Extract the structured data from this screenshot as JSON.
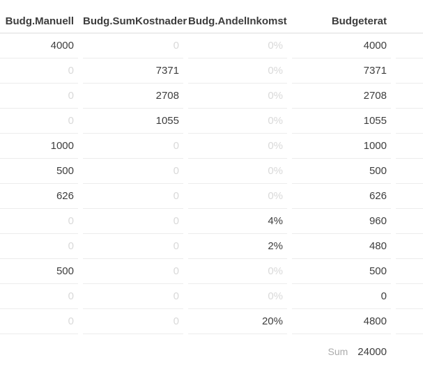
{
  "table": {
    "columns": [
      {
        "label": "Budg.Manuell"
      },
      {
        "label": "Budg.SumKostnader"
      },
      {
        "label": "Budg.AndelInkomst"
      },
      {
        "label": "Budgeterat"
      }
    ],
    "rows": [
      [
        {
          "t": "4000",
          "muted": false
        },
        {
          "t": "0",
          "muted": true
        },
        {
          "t": "0%",
          "muted": true
        },
        {
          "t": "4000",
          "muted": false
        }
      ],
      [
        {
          "t": "0",
          "muted": true
        },
        {
          "t": "7371",
          "muted": false
        },
        {
          "t": "0%",
          "muted": true
        },
        {
          "t": "7371",
          "muted": false
        }
      ],
      [
        {
          "t": "0",
          "muted": true
        },
        {
          "t": "2708",
          "muted": false
        },
        {
          "t": "0%",
          "muted": true
        },
        {
          "t": "2708",
          "muted": false
        }
      ],
      [
        {
          "t": "0",
          "muted": true
        },
        {
          "t": "1055",
          "muted": false
        },
        {
          "t": "0%",
          "muted": true
        },
        {
          "t": "1055",
          "muted": false
        }
      ],
      [
        {
          "t": "1000",
          "muted": false
        },
        {
          "t": "0",
          "muted": true
        },
        {
          "t": "0%",
          "muted": true
        },
        {
          "t": "1000",
          "muted": false
        }
      ],
      [
        {
          "t": "500",
          "muted": false
        },
        {
          "t": "0",
          "muted": true
        },
        {
          "t": "0%",
          "muted": true
        },
        {
          "t": "500",
          "muted": false
        }
      ],
      [
        {
          "t": "626",
          "muted": false
        },
        {
          "t": "0",
          "muted": true
        },
        {
          "t": "0%",
          "muted": true
        },
        {
          "t": "626",
          "muted": false
        }
      ],
      [
        {
          "t": "0",
          "muted": true
        },
        {
          "t": "0",
          "muted": true
        },
        {
          "t": "4%",
          "muted": false
        },
        {
          "t": "960",
          "muted": false
        }
      ],
      [
        {
          "t": "0",
          "muted": true
        },
        {
          "t": "0",
          "muted": true
        },
        {
          "t": "2%",
          "muted": false
        },
        {
          "t": "480",
          "muted": false
        }
      ],
      [
        {
          "t": "500",
          "muted": false
        },
        {
          "t": "0",
          "muted": true
        },
        {
          "t": "0%",
          "muted": true
        },
        {
          "t": "500",
          "muted": false
        }
      ],
      [
        {
          "t": "0",
          "muted": true
        },
        {
          "t": "0",
          "muted": true
        },
        {
          "t": "0%",
          "muted": true
        },
        {
          "t": "0",
          "muted": false
        }
      ],
      [
        {
          "t": "0",
          "muted": true
        },
        {
          "t": "0",
          "muted": true
        },
        {
          "t": "20%",
          "muted": false
        },
        {
          "t": "4800",
          "muted": false
        }
      ]
    ],
    "footer": {
      "label": "Sum",
      "value": "24000"
    }
  },
  "colors": {
    "header_text": "#3c3c3c",
    "text": "#3d3d3d",
    "muted": "#d9d9d9",
    "divider": "#ececec",
    "header_divider": "#dcdcdc",
    "sum_label": "#ababab"
  }
}
